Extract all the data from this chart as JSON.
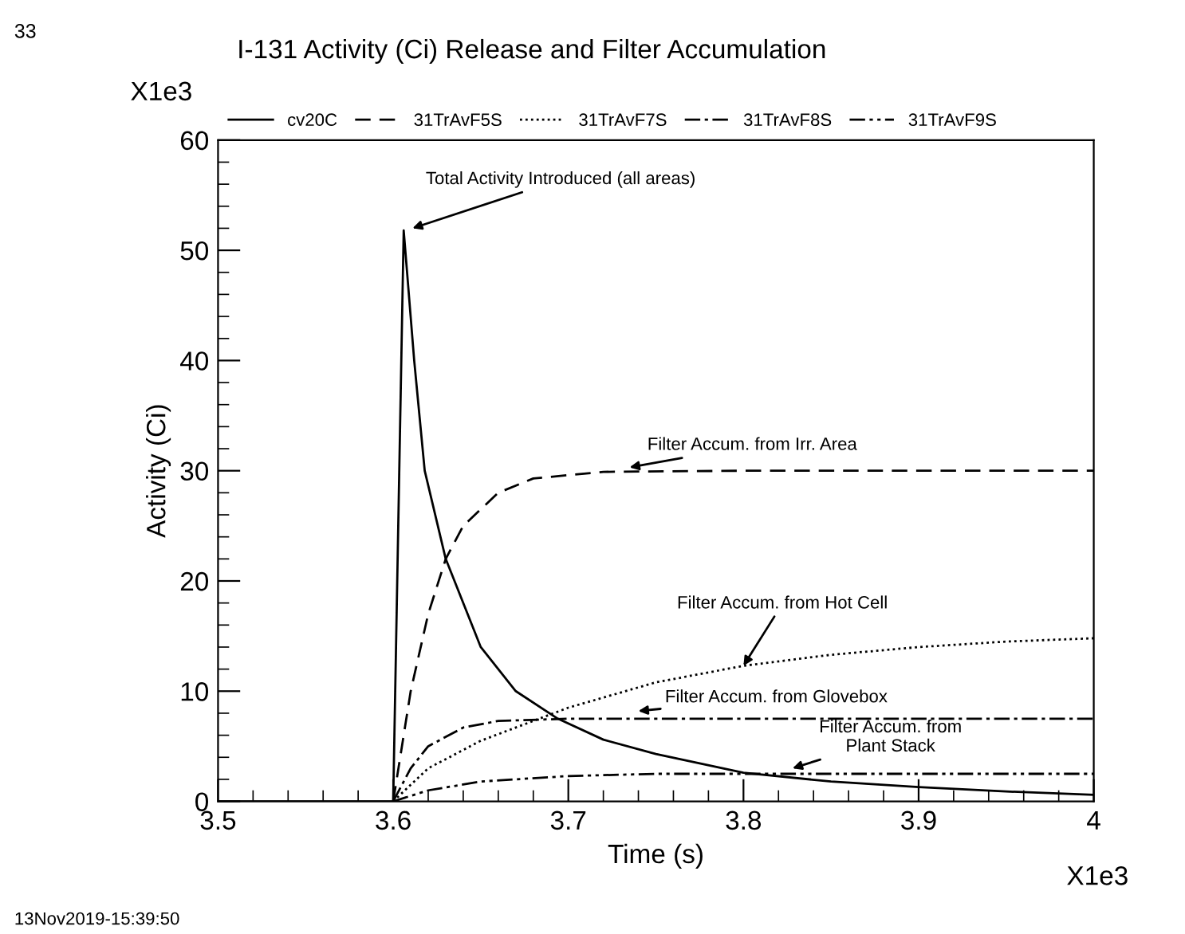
{
  "chart_data": {
    "type": "line",
    "title": "I-131 Activity (Ci) Release and Filter Accumulation",
    "xlabel": "Time (s)",
    "ylabel": "Activity (Ci)",
    "xlim": [
      3.5,
      4
    ],
    "xticks": [
      3.5,
      3.6,
      3.7,
      3.8,
      3.9,
      4
    ],
    "ylim": [
      0,
      60
    ],
    "yticks": [
      0,
      10,
      20,
      30,
      40,
      50,
      60
    ],
    "grid": false,
    "legend": "top",
    "marker": "none",
    "series": [
      {
        "name": "cv20C",
        "color": "#000000",
        "line_style": "solid",
        "x": [
          3.5,
          3.6,
          3.606,
          3.612,
          3.618,
          3.63,
          3.65,
          3.67,
          3.694,
          3.72,
          3.75,
          3.8,
          3.85,
          3.9,
          3.95,
          4.0
        ],
        "values": [
          0,
          0,
          51.8,
          40,
          30,
          22,
          14,
          10,
          7.5,
          5.6,
          4.3,
          2.6,
          1.8,
          1.3,
          0.9,
          0.6
        ]
      },
      {
        "name": "31TrAvF5S",
        "color": "#000000",
        "line_style": "dashed",
        "x": [
          3.6,
          3.605,
          3.61,
          3.62,
          3.63,
          3.64,
          3.66,
          3.68,
          3.72,
          3.8,
          4.0
        ],
        "values": [
          0,
          5,
          10,
          17,
          22,
          25,
          28,
          29.3,
          29.9,
          30,
          30
        ]
      },
      {
        "name": "31TrAvF7S",
        "color": "#000000",
        "line_style": "dotted",
        "x": [
          3.6,
          3.62,
          3.65,
          3.7,
          3.75,
          3.8,
          3.85,
          3.9,
          3.95,
          4.0
        ],
        "values": [
          0,
          3,
          5.5,
          8.5,
          10.8,
          12.3,
          13.3,
          14,
          14.5,
          14.8
        ]
      },
      {
        "name": "31TrAvF8S",
        "color": "#000000",
        "line_style": "dashdot",
        "x": [
          3.6,
          3.61,
          3.62,
          3.64,
          3.66,
          3.7,
          4.0
        ],
        "values": [
          0,
          3,
          5,
          6.7,
          7.3,
          7.5,
          7.5
        ]
      },
      {
        "name": "31TrAvF9S",
        "color": "#000000",
        "line_style": "dashdotdot",
        "x": [
          3.6,
          3.62,
          3.65,
          3.7,
          3.75,
          4.0
        ],
        "values": [
          0,
          1,
          1.8,
          2.3,
          2.5,
          2.5
        ]
      }
    ],
    "annotations": [
      {
        "text": "Total Activity Introduced (all areas)",
        "x": 3.611,
        "y": 52
      },
      {
        "text": "Filter Accum. from Irr. Area",
        "x": 3.735,
        "y": 30.3
      },
      {
        "text": "Filter Accum. from Hot Cell",
        "x": 3.8,
        "y": 12.3
      },
      {
        "text": "Filter Accum. from Glovebox",
        "x": 3.74,
        "y": 8.2
      },
      {
        "text": "Filter Accum. from\nPlant Stack",
        "x": 3.828,
        "y": 3.0
      },
      "33",
      "X1e3",
      "X1e3",
      "13Nov2019-15:39:50"
    ]
  }
}
